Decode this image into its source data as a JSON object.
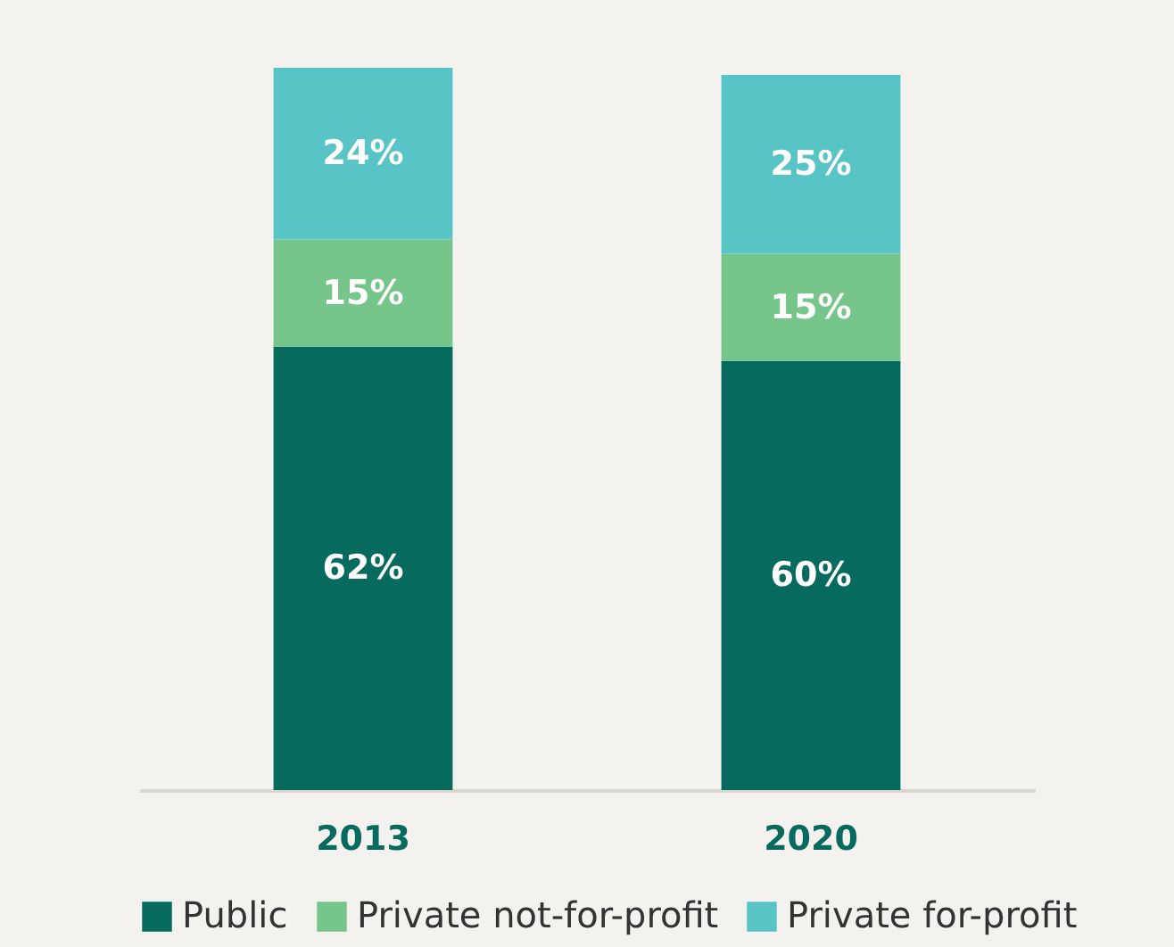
{
  "chart_data": {
    "type": "bar",
    "stacked": true,
    "categories": [
      "2013",
      "2020"
    ],
    "legend": "bottom",
    "series": [
      {
        "name": "Public",
        "color": "#066b5e",
        "values": [
          62,
          60
        ],
        "value_labels": [
          "62%",
          "60%"
        ]
      },
      {
        "name": "Private not-for-profit",
        "color": "#76c68b",
        "values": [
          15,
          15
        ],
        "value_labels": [
          "15%",
          "15%"
        ]
      },
      {
        "name": "Private for-profit",
        "color": "#58c4c6",
        "values": [
          24,
          25
        ],
        "value_labels": [
          "24%",
          "25%"
        ]
      }
    ]
  }
}
